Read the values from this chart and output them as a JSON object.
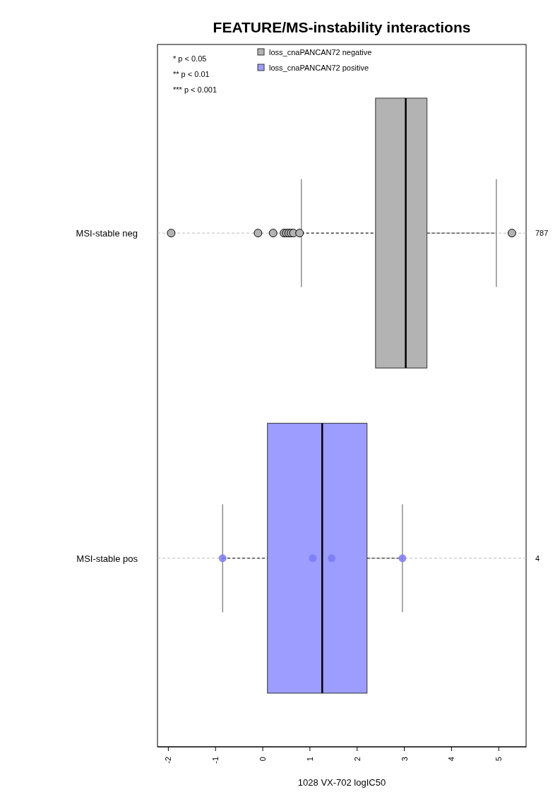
{
  "chart_data": {
    "type": "box",
    "orientation": "horizontal",
    "title": "FEATURE/MS-instability interactions",
    "xlabel": "1028 VX-702 logIC50",
    "categories": [
      "MSI-stable neg",
      "MSI-stable pos"
    ],
    "xlim": [
      -2.23,
      5.58
    ],
    "xticks": [
      -2,
      -1,
      0,
      1,
      2,
      3,
      4,
      5
    ],
    "legend": "top left",
    "grid": "y",
    "series": [
      {
        "name": "loss_cnaPANCAN72 negative",
        "color": "#b3b3b3",
        "boxes": [
          {
            "low": 0.82,
            "q1": 2.39,
            "median": 3.03,
            "q3": 3.48,
            "high": 4.95,
            "outliers": [
              -1.94,
              -0.1,
              0.22,
              0.45,
              0.5,
              0.55,
              0.6,
              0.65,
              0.78,
              5.28
            ]
          },
          null
        ]
      },
      {
        "name": "loss_cnaPANCAN72 positive",
        "color": "#9d9dff",
        "boxes": [
          null,
          {
            "low": -0.85,
            "q1": 0.1,
            "median": 1.26,
            "q3": 2.21,
            "high": 2.96
          }
        ]
      },
      {
        "type": "scatter",
        "color": "#7b7bf5",
        "x": [
          "MSI-stable pos",
          "MSI-stable pos",
          "MSI-stable pos",
          "MSI-stable pos"
        ],
        "values": [
          -0.85,
          1.06,
          1.46,
          2.96
        ]
      }
    ],
    "annotations": [
      "* p < 0.05",
      "** p < 0.01",
      "*** p < 0.001",
      "787",
      "4"
    ]
  }
}
